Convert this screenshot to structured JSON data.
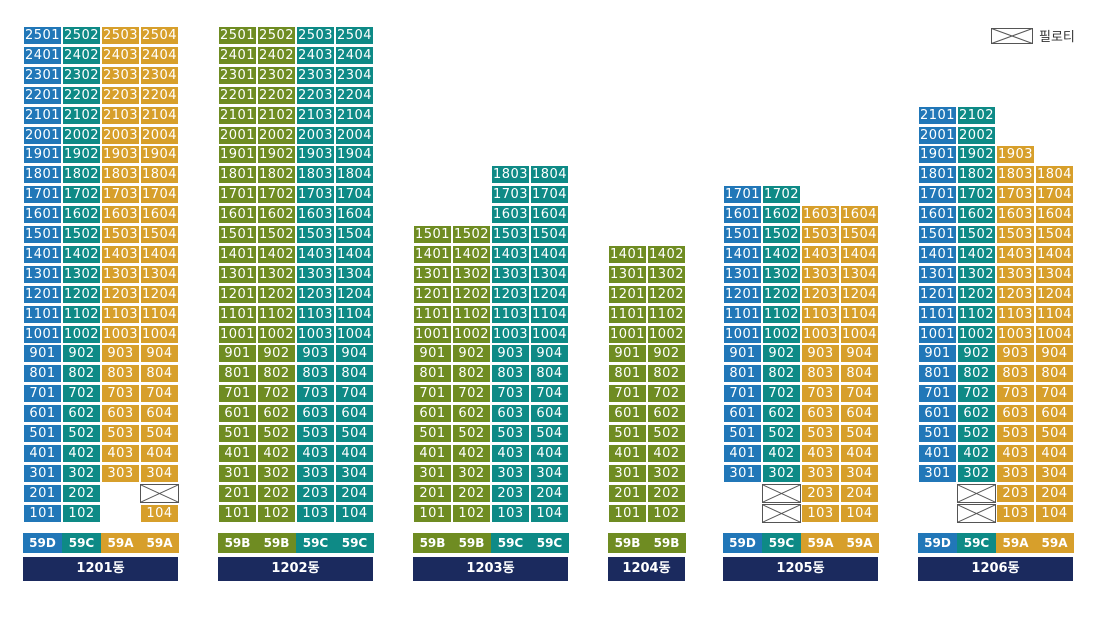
{
  "colors": {
    "59A": "#d79f2b",
    "59B": "#6f8c22",
    "59C": "#0e8a86",
    "59D": "#2177b8",
    "label_bg": "#1b2a5e"
  },
  "legend": {
    "icon": "piloti-icon",
    "label": "필로티"
  },
  "buildings": [
    {
      "name": "1201동",
      "cols": [
        "59D",
        "59C",
        "59A",
        "59A"
      ],
      "max": [
        25,
        25,
        25,
        25
      ],
      "min": [
        1,
        1,
        3,
        1
      ],
      "piloti": [
        [
          2,
          3
        ]
      ]
    },
    {
      "name": "1202동",
      "cols": [
        "59B",
        "59B",
        "59C",
        "59C"
      ],
      "max": [
        25,
        25,
        25,
        25
      ],
      "min": [
        1,
        1,
        1,
        1
      ],
      "piloti": []
    },
    {
      "name": "1203동",
      "cols": [
        "59B",
        "59B",
        "59C",
        "59C"
      ],
      "max": [
        15,
        15,
        18,
        18
      ],
      "min": [
        1,
        1,
        1,
        1
      ],
      "piloti": []
    },
    {
      "name": "1204동",
      "cols": [
        "59B",
        "59B"
      ],
      "max": [
        14,
        14
      ],
      "min": [
        1,
        1
      ],
      "piloti": []
    },
    {
      "name": "1205동",
      "cols": [
        "59D",
        "59C",
        "59A",
        "59A"
      ],
      "max": [
        17,
        17,
        16,
        16
      ],
      "min": [
        3,
        1,
        1,
        1
      ],
      "piloti": [
        [
          2,
          1
        ],
        [
          1,
          1
        ]
      ]
    },
    {
      "name": "1206동",
      "cols": [
        "59D",
        "59C",
        "59A",
        "59A"
      ],
      "max": [
        21,
        21,
        19,
        18
      ],
      "min": [
        3,
        1,
        1,
        1
      ],
      "piloti": [
        [
          2,
          1
        ],
        [
          1,
          1
        ]
      ]
    }
  ]
}
